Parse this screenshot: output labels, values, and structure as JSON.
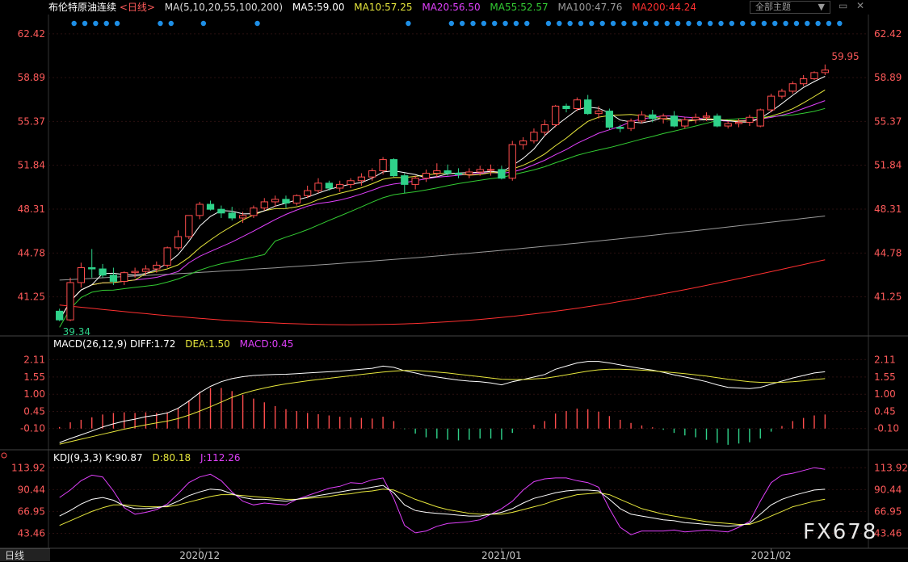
{
  "header": {
    "instrument": "布伦特原油连续",
    "period": "<日线>",
    "ma_params": "MA(5,10,20,55,100,200)",
    "ma5": "MA5:59.00",
    "ma10": "MA10:57.25",
    "ma20": "MA20:56.50",
    "ma55": "MA55:52.57",
    "ma100": "MA100:47.76",
    "ma200": "MA200:44.24",
    "theme_button": "全部主题",
    "theme_arrow": "▼"
  },
  "macd_label": {
    "title": "MACD(26,12,9)",
    "diff": "DIFF:1.72",
    "dea": "DEA:1.50",
    "macd": "MACD:0.45"
  },
  "kdj_label": {
    "title": "KDJ(9,3,3)",
    "k": "K:90.87",
    "d": "D:80.18",
    "j": "J:112.26"
  },
  "bottom_tab": "日线",
  "watermark": "FX678",
  "colors": {
    "up": "#ff4d4d",
    "down": "#2fd28a",
    "ma5": "#ffffff",
    "ma10": "#e6e63c",
    "ma20": "#e040fb",
    "ma55": "#33cc33",
    "ma100": "#9a9a9a",
    "ma200": "#ff3030",
    "axis_text": "#ff5a5a",
    "dot": "#1e8fe6"
  },
  "chart_data": [
    {
      "type": "candlestick",
      "title": "布伦特原油连续",
      "yticks": [
        62.42,
        58.89,
        55.37,
        51.84,
        48.31,
        44.78,
        41.25
      ],
      "ylim": [
        38.5,
        62.8
      ],
      "xticks": [
        "2020/12",
        "2021/01",
        "2021/02"
      ],
      "annotations": {
        "high": "59.95",
        "low": "39.34"
      },
      "ohlc": [
        [
          40.1,
          40.3,
          39.3,
          39.4
        ],
        [
          39.4,
          42.8,
          39.3,
          42.4
        ],
        [
          42.4,
          44.0,
          42.0,
          43.6
        ],
        [
          43.6,
          45.1,
          42.8,
          43.5
        ],
        [
          43.5,
          43.9,
          42.8,
          43.0
        ],
        [
          43.0,
          43.6,
          42.2,
          42.5
        ],
        [
          42.5,
          43.3,
          42.2,
          43.2
        ],
        [
          43.2,
          43.6,
          42.8,
          43.3
        ],
        [
          43.3,
          43.8,
          43.0,
          43.5
        ],
        [
          43.5,
          44.1,
          43.2,
          43.8
        ],
        [
          43.8,
          45.3,
          43.6,
          45.2
        ],
        [
          45.2,
          46.6,
          45.0,
          46.1
        ],
        [
          46.1,
          47.8,
          45.9,
          47.8
        ],
        [
          47.8,
          48.9,
          47.5,
          48.7
        ],
        [
          48.7,
          49.0,
          48.2,
          48.3
        ],
        [
          48.3,
          48.6,
          47.6,
          48.0
        ],
        [
          48.0,
          48.5,
          47.4,
          47.6
        ],
        [
          47.6,
          48.1,
          47.2,
          47.8
        ],
        [
          47.8,
          48.6,
          47.6,
          48.4
        ],
        [
          48.4,
          49.2,
          48.2,
          48.9
        ],
        [
          48.9,
          49.4,
          48.5,
          49.1
        ],
        [
          49.1,
          49.4,
          48.4,
          48.8
        ],
        [
          48.8,
          49.5,
          48.6,
          49.4
        ],
        [
          49.4,
          50.2,
          49.2,
          49.8
        ],
        [
          49.8,
          50.8,
          49.6,
          50.4
        ],
        [
          50.4,
          50.6,
          49.8,
          50.0
        ],
        [
          50.0,
          50.6,
          49.7,
          50.3
        ],
        [
          50.3,
          50.8,
          50.0,
          50.6
        ],
        [
          50.6,
          51.2,
          50.2,
          50.9
        ],
        [
          50.9,
          51.6,
          50.6,
          51.4
        ],
        [
          51.4,
          52.5,
          51.1,
          52.3
        ],
        [
          52.3,
          52.4,
          50.9,
          51.0
        ],
        [
          51.0,
          51.2,
          49.6,
          50.3
        ],
        [
          50.3,
          51.0,
          49.9,
          50.8
        ],
        [
          50.8,
          51.5,
          50.5,
          51.2
        ],
        [
          51.2,
          52.0,
          50.9,
          51.4
        ],
        [
          51.4,
          51.9,
          51.0,
          51.2
        ],
        [
          51.2,
          51.6,
          50.8,
          51.1
        ],
        [
          51.1,
          51.6,
          50.8,
          51.3
        ],
        [
          51.3,
          51.8,
          51.0,
          51.5
        ],
        [
          51.5,
          51.9,
          51.0,
          51.5
        ],
        [
          51.5,
          51.8,
          50.7,
          50.8
        ],
        [
          50.8,
          53.8,
          50.6,
          53.5
        ],
        [
          53.5,
          54.1,
          53.1,
          53.8
        ],
        [
          53.8,
          54.8,
          53.6,
          54.5
        ],
        [
          54.5,
          55.5,
          54.2,
          55.1
        ],
        [
          55.1,
          56.7,
          54.9,
          56.6
        ],
        [
          56.6,
          56.8,
          56.1,
          56.4
        ],
        [
          56.4,
          57.3,
          56.2,
          57.1
        ],
        [
          57.1,
          57.5,
          55.9,
          56.0
        ],
        [
          56.0,
          56.6,
          55.6,
          56.2
        ],
        [
          56.2,
          56.4,
          54.7,
          54.9
        ],
        [
          54.9,
          55.1,
          54.5,
          54.8
        ],
        [
          54.8,
          55.6,
          54.6,
          55.4
        ],
        [
          55.4,
          56.2,
          55.2,
          55.9
        ],
        [
          55.9,
          56.3,
          55.3,
          55.6
        ],
        [
          55.6,
          56.0,
          55.2,
          55.8
        ],
        [
          55.8,
          56.2,
          54.9,
          55.0
        ],
        [
          55.0,
          55.7,
          54.8,
          55.5
        ],
        [
          55.5,
          56.0,
          55.2,
          55.7
        ],
        [
          55.7,
          56.1,
          55.4,
          55.8
        ],
        [
          55.8,
          56.0,
          54.9,
          55.0
        ],
        [
          55.0,
          55.4,
          54.8,
          55.2
        ],
        [
          55.2,
          55.6,
          54.9,
          55.3
        ],
        [
          55.3,
          55.9,
          55.0,
          55.7
        ],
        [
          55.0,
          56.4,
          54.9,
          56.3
        ],
        [
          56.3,
          57.6,
          56.1,
          57.4
        ],
        [
          57.4,
          58.0,
          57.2,
          57.8
        ],
        [
          57.8,
          58.6,
          57.6,
          58.4
        ],
        [
          58.4,
          59.1,
          58.2,
          58.8
        ],
        [
          58.8,
          59.4,
          58.7,
          59.3
        ],
        [
          59.3,
          59.95,
          59.1,
          59.5
        ]
      ],
      "ma_endpoints": {
        "ma5": 59.0,
        "ma10": 57.25,
        "ma20": 56.5,
        "ma55": 52.57,
        "ma100": 47.76,
        "ma200": 44.24
      }
    },
    {
      "type": "bar",
      "title": "MACD(26,12,9)",
      "yticks": [
        2.11,
        1.55,
        1.0,
        0.45,
        -0.1
      ],
      "ylim": [
        -0.65,
        2.35
      ],
      "series": [
        {
          "name": "DIFF",
          "values": [
            -0.55,
            -0.42,
            -0.3,
            -0.18,
            -0.05,
            0.05,
            0.14,
            0.2,
            0.28,
            0.33,
            0.4,
            0.55,
            0.78,
            1.05,
            1.25,
            1.4,
            1.5,
            1.56,
            1.6,
            1.62,
            1.63,
            1.64,
            1.66,
            1.68,
            1.7,
            1.72,
            1.74,
            1.77,
            1.8,
            1.83,
            1.9,
            1.86,
            1.75,
            1.68,
            1.6,
            1.55,
            1.5,
            1.45,
            1.42,
            1.4,
            1.36,
            1.3,
            1.4,
            1.47,
            1.55,
            1.63,
            1.8,
            1.9,
            2.0,
            2.05,
            2.05,
            2.0,
            1.94,
            1.88,
            1.82,
            1.77,
            1.7,
            1.62,
            1.55,
            1.48,
            1.4,
            1.3,
            1.22,
            1.2,
            1.18,
            1.22,
            1.32,
            1.42,
            1.52,
            1.6,
            1.68,
            1.72
          ]
        },
        {
          "name": "DEA",
          "values": [
            -0.6,
            -0.52,
            -0.44,
            -0.36,
            -0.28,
            -0.2,
            -0.12,
            -0.05,
            0.02,
            0.08,
            0.14,
            0.22,
            0.33,
            0.46,
            0.6,
            0.75,
            0.9,
            1.02,
            1.12,
            1.2,
            1.27,
            1.33,
            1.38,
            1.43,
            1.47,
            1.51,
            1.55,
            1.59,
            1.63,
            1.67,
            1.71,
            1.74,
            1.76,
            1.76,
            1.74,
            1.71,
            1.68,
            1.64,
            1.6,
            1.56,
            1.52,
            1.48,
            1.47,
            1.47,
            1.49,
            1.51,
            1.56,
            1.62,
            1.68,
            1.74,
            1.78,
            1.8,
            1.8,
            1.79,
            1.77,
            1.75,
            1.72,
            1.69,
            1.66,
            1.62,
            1.58,
            1.53,
            1.48,
            1.44,
            1.4,
            1.38,
            1.37,
            1.38,
            1.4,
            1.43,
            1.47,
            1.5
          ]
        }
      ],
      "histogram": [
        0.05,
        0.2,
        0.28,
        0.36,
        0.45,
        0.5,
        0.52,
        0.5,
        0.52,
        0.5,
        0.52,
        0.66,
        0.9,
        1.18,
        1.3,
        1.3,
        1.2,
        1.08,
        0.96,
        0.84,
        0.72,
        0.62,
        0.56,
        0.5,
        0.46,
        0.42,
        0.38,
        0.36,
        0.34,
        0.32,
        0.38,
        0.24,
        -0.02,
        -0.16,
        -0.28,
        -0.32,
        -0.36,
        -0.38,
        -0.36,
        -0.32,
        -0.32,
        -0.36,
        -0.14,
        0.0,
        0.12,
        0.24,
        0.48,
        0.56,
        0.64,
        0.62,
        0.54,
        0.4,
        0.28,
        0.18,
        0.1,
        0.04,
        -0.04,
        -0.14,
        -0.22,
        -0.28,
        -0.36,
        -0.46,
        -0.52,
        -0.48,
        -0.44,
        -0.32,
        -0.1,
        0.08,
        0.24,
        0.34,
        0.42,
        0.45
      ]
    },
    {
      "type": "line",
      "title": "KDJ(9,3,3)",
      "yticks": [
        113.92,
        90.44,
        66.95,
        43.46
      ],
      "ylim": [
        30,
        122
      ],
      "series": [
        {
          "name": "K",
          "values": [
            62,
            68,
            75,
            80,
            82,
            79,
            73,
            70,
            70,
            71,
            73,
            78,
            84,
            88,
            91,
            90,
            86,
            82,
            80,
            80,
            79,
            78,
            80,
            82,
            84,
            86,
            88,
            90,
            91,
            93,
            95,
            87,
            74,
            68,
            66,
            65,
            64,
            63,
            62,
            62,
            64,
            66,
            70,
            76,
            81,
            84,
            87,
            89,
            90,
            90,
            89,
            80,
            70,
            64,
            62,
            60,
            58,
            57,
            55,
            54,
            53,
            52,
            51,
            52,
            54,
            64,
            74,
            80,
            84,
            87,
            90,
            90.87
          ]
        },
        {
          "name": "D",
          "values": [
            52,
            57,
            62,
            67,
            71,
            74,
            74,
            73,
            72,
            72,
            72,
            74,
            77,
            80,
            83,
            85,
            85,
            84,
            83,
            82,
            81,
            80,
            80,
            81,
            82,
            83,
            85,
            86,
            88,
            89,
            91,
            90,
            85,
            80,
            76,
            72,
            69,
            67,
            65,
            64,
            64,
            64,
            66,
            69,
            72,
            75,
            79,
            82,
            85,
            86,
            87,
            85,
            80,
            75,
            70,
            67,
            64,
            62,
            60,
            58,
            56,
            55,
            54,
            53,
            53,
            57,
            62,
            67,
            72,
            75,
            78,
            80.18
          ]
        },
        {
          "name": "J",
          "values": [
            82,
            90,
            100,
            106,
            104,
            89,
            71,
            64,
            66,
            69,
            75,
            86,
            98,
            104,
            107,
            100,
            88,
            78,
            74,
            76,
            75,
            74,
            80,
            84,
            88,
            92,
            94,
            98,
            97,
            101,
            103,
            81,
            52,
            44,
            46,
            51,
            54,
            55,
            56,
            58,
            64,
            70,
            78,
            90,
            99,
            102,
            103,
            103,
            100,
            98,
            93,
            70,
            50,
            42,
            46,
            46,
            46,
            47,
            45,
            46,
            47,
            46,
            45,
            50,
            56,
            78,
            98,
            106,
            108,
            111,
            114,
            112.26
          ]
        }
      ]
    }
  ]
}
